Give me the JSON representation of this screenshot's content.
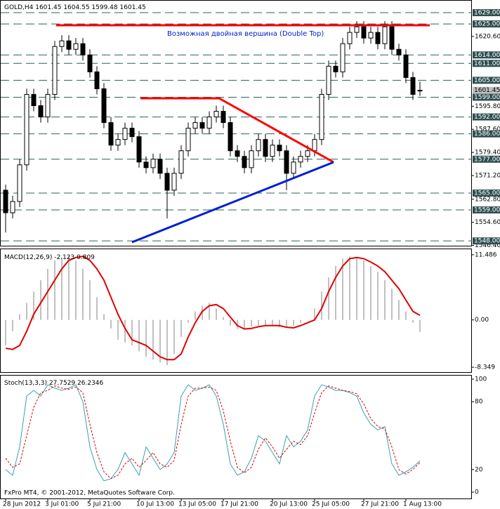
{
  "chart_data": [
    {
      "type": "candlestick",
      "title": "GOLD,H4",
      "ohlc_label": [
        1601.45,
        1604.55,
        1599.48,
        1601.45
      ],
      "annotation": "Возможная двойная вершина (Double Top)",
      "categories": [
        "28 Jun 2012",
        null,
        null,
        null,
        null,
        null,
        "3 Jul 01:00",
        null,
        null,
        null,
        null,
        null,
        "5 Jul 21:00",
        null,
        null,
        null,
        null,
        null,
        null,
        "10 Jul 13:00",
        null,
        null,
        null,
        null,
        null,
        "13 Jul 05:00",
        null,
        null,
        null,
        null,
        null,
        "17 Jul 21:00",
        null,
        null,
        null,
        null,
        null,
        null,
        "20 Jul 13:00",
        null,
        null,
        null,
        null,
        null,
        "25 Jul 05:00",
        null,
        null,
        null,
        null,
        null,
        null,
        "27 Jul 21:00",
        null,
        null,
        null,
        null,
        null,
        "1 Aug 13:00",
        null,
        null
      ],
      "open": [
        1566,
        1558,
        1562,
        1575,
        1600,
        1596,
        1592,
        1600,
        1617,
        1619,
        1616,
        1618,
        1614,
        1608,
        1602,
        1590,
        1582,
        1584,
        1588,
        1585,
        1576,
        1574,
        1577,
        1572,
        1566,
        1572,
        1580,
        1588,
        1590,
        1588,
        1592,
        1594,
        1590,
        1580,
        1578,
        1574,
        1580,
        1584,
        1578,
        1582,
        1580,
        1572,
        1576,
        1578,
        1580,
        1584,
        1600,
        1610,
        1608,
        1618,
        1622,
        1624,
        1620,
        1622,
        1618,
        1624,
        1616,
        1614,
        1606,
        1601.45
      ],
      "high": [
        1568,
        1564,
        1577,
        1602,
        1602,
        1598,
        1602,
        1619,
        1621,
        1621,
        1620,
        1620,
        1616,
        1610,
        1604,
        1592,
        1586,
        1590,
        1590,
        1587,
        1578,
        1579,
        1579,
        1574,
        1574,
        1582,
        1590,
        1592,
        1592,
        1594,
        1596,
        1596,
        1592,
        1582,
        1580,
        1582,
        1586,
        1586,
        1584,
        1584,
        1582,
        1578,
        1580,
        1582,
        1586,
        1602,
        1612,
        1612,
        1620,
        1624,
        1626,
        1626,
        1624,
        1624,
        1626,
        1626,
        1618,
        1616,
        1608,
        1604.55
      ],
      "low": [
        1551,
        1556,
        1560,
        1573,
        1594,
        1590,
        1590,
        1598,
        1615,
        1614,
        1614,
        1612,
        1606,
        1600,
        1588,
        1580,
        1580,
        1582,
        1583,
        1574,
        1572,
        1572,
        1570,
        1556,
        1564,
        1570,
        1578,
        1586,
        1586,
        1586,
        1590,
        1588,
        1578,
        1576,
        1572,
        1572,
        1578,
        1576,
        1576,
        1578,
        1566,
        1570,
        1574,
        1576,
        1578,
        1582,
        1598,
        1606,
        1606,
        1616,
        1620,
        1618,
        1618,
        1616,
        1616,
        1614,
        1612,
        1604,
        1598,
        1599.48
      ],
      "close": [
        1558,
        1562,
        1575,
        1600,
        1596,
        1592,
        1600,
        1617,
        1619,
        1616,
        1618,
        1614,
        1608,
        1602,
        1590,
        1582,
        1584,
        1588,
        1585,
        1576,
        1574,
        1577,
        1572,
        1566,
        1572,
        1580,
        1588,
        1590,
        1588,
        1592,
        1594,
        1590,
        1580,
        1578,
        1574,
        1580,
        1584,
        1578,
        1582,
        1580,
        1572,
        1576,
        1578,
        1580,
        1584,
        1600,
        1610,
        1608,
        1618,
        1622,
        1624,
        1620,
        1622,
        1618,
        1624,
        1616,
        1614,
        1606,
        1600,
        1601.45
      ],
      "ylim": [
        1546.3,
        1633
      ],
      "yticks": [
        {
          "value": 1620.6,
          "label": "1620.60"
        },
        {
          "value": 1595.8,
          "label": "1595.80"
        },
        {
          "value": 1587.6,
          "label": "1587.60"
        },
        {
          "value": 1579.4,
          "label": "1579.40"
        },
        {
          "value": 1571.2,
          "label": "1571.20"
        },
        {
          "value": 1562.8,
          "label": "1562.80"
        },
        {
          "value": 1554.6,
          "label": "1554.60"
        },
        {
          "value": 1546.4,
          "label": "1546.40"
        }
      ],
      "levels": [
        {
          "value": 1629,
          "label": "1629.00"
        },
        {
          "value": 1625,
          "label": "1625.00"
        },
        {
          "value": 1614,
          "label": "1614.00"
        },
        {
          "value": 1611,
          "label": "1611.00"
        },
        {
          "value": 1605,
          "label": "1605.00"
        },
        {
          "value": 1599,
          "label": "1599.00"
        },
        {
          "value": 1592,
          "label": "1592.00"
        },
        {
          "value": 1586,
          "label": "1586.00"
        },
        {
          "value": 1577,
          "label": "1577.00"
        },
        {
          "value": 1565,
          "label": "1565.00"
        },
        {
          "value": 1559,
          "label": "1559.00"
        },
        {
          "value": 1548,
          "label": "1548.00"
        }
      ],
      "current_price": 1601.45
    },
    {
      "type": "macd",
      "title": "MACD(12,26,9)",
      "title_values": [
        -2.123,
        0.809
      ],
      "series": [
        {
          "color": "#c0c0c0",
          "values": [
            -4.5,
            -2,
            1,
            3,
            5,
            7,
            9,
            10.5,
            11,
            11.3,
            10.5,
            9,
            7,
            4,
            1,
            -1.5,
            -3.5,
            -4,
            -4.5,
            -5.5,
            -6.5,
            -7,
            -7.5,
            -8,
            -6,
            -3,
            -0.5,
            1.5,
            2.5,
            3,
            2,
            0.5,
            -1,
            -1.6,
            -1.5,
            -1.2,
            -1,
            -1,
            -1,
            -1.3,
            -1.4,
            -1,
            -0.5,
            0,
            2,
            5,
            7.5,
            9.5,
            10.8,
            11.2,
            11,
            10.5,
            9.5,
            8.5,
            7,
            5.5,
            3.5,
            1.5,
            -0.5,
            -2.123
          ]
        },
        {
          "color": "#e00000",
          "values": [
            -5,
            -5.2,
            -4.5,
            -2,
            1,
            3,
            5,
            7,
            9,
            10.5,
            11,
            11.2,
            10.5,
            9,
            7,
            4,
            1,
            -1.5,
            -3.5,
            -4,
            -4.5,
            -5.5,
            -6.5,
            -7,
            -7,
            -6,
            -3,
            -0.5,
            1.5,
            2.5,
            2.7,
            2,
            0.5,
            -1,
            -1.6,
            -1.5,
            -1.2,
            -1,
            -1,
            -1,
            -1.3,
            -1.4,
            -1,
            -0.5,
            0,
            2,
            5,
            7.5,
            9.5,
            10.8,
            11,
            10.8,
            10.2,
            9.5,
            8.5,
            7,
            5.5,
            3.5,
            1.5,
            0.809
          ]
        }
      ],
      "ylim": [
        -9.2,
        12.46
      ],
      "yticks": [
        11.486,
        {
          "value": 0,
          "label": "0.00"
        },
        -8.349
      ]
    },
    {
      "type": "stochastic",
      "title": "Stoch(13,3,3)",
      "title_values": [
        27.7529,
        26.2346
      ],
      "series": [
        {
          "color": "#3aa0b0",
          "values": [
            20,
            15,
            40,
            85,
            90,
            85,
            95,
            92,
            90,
            92,
            95,
            80,
            40,
            20,
            10,
            12,
            20,
            35,
            25,
            15,
            40,
            30,
            20,
            25,
            35,
            85,
            95,
            90,
            92,
            95,
            85,
            60,
            25,
            15,
            18,
            30,
            50,
            45,
            35,
            25,
            50,
            40,
            45,
            55,
            85,
            95,
            93,
            90,
            90,
            88,
            85,
            70,
            60,
            55,
            58,
            25,
            15,
            18,
            22,
            27.7529
          ]
        },
        {
          "color": "#e00000",
          "values": [
            30,
            22,
            25,
            50,
            75,
            88,
            90,
            94,
            92,
            91,
            93,
            88,
            60,
            35,
            18,
            12,
            15,
            25,
            30,
            22,
            28,
            35,
            25,
            22,
            28,
            60,
            85,
            92,
            92,
            93,
            90,
            72,
            45,
            22,
            17,
            22,
            38,
            48,
            40,
            30,
            38,
            45,
            42,
            50,
            70,
            88,
            94,
            92,
            90,
            89,
            87,
            78,
            65,
            58,
            56,
            40,
            20,
            16,
            20,
            26.2346
          ]
        }
      ],
      "ylim": [
        -5.6,
        103.1
      ],
      "yticks": [
        100,
        80,
        20,
        0
      ]
    }
  ],
  "footer": "FxPro MT4, © 2001-2012, MetaQuotes Software Corp."
}
